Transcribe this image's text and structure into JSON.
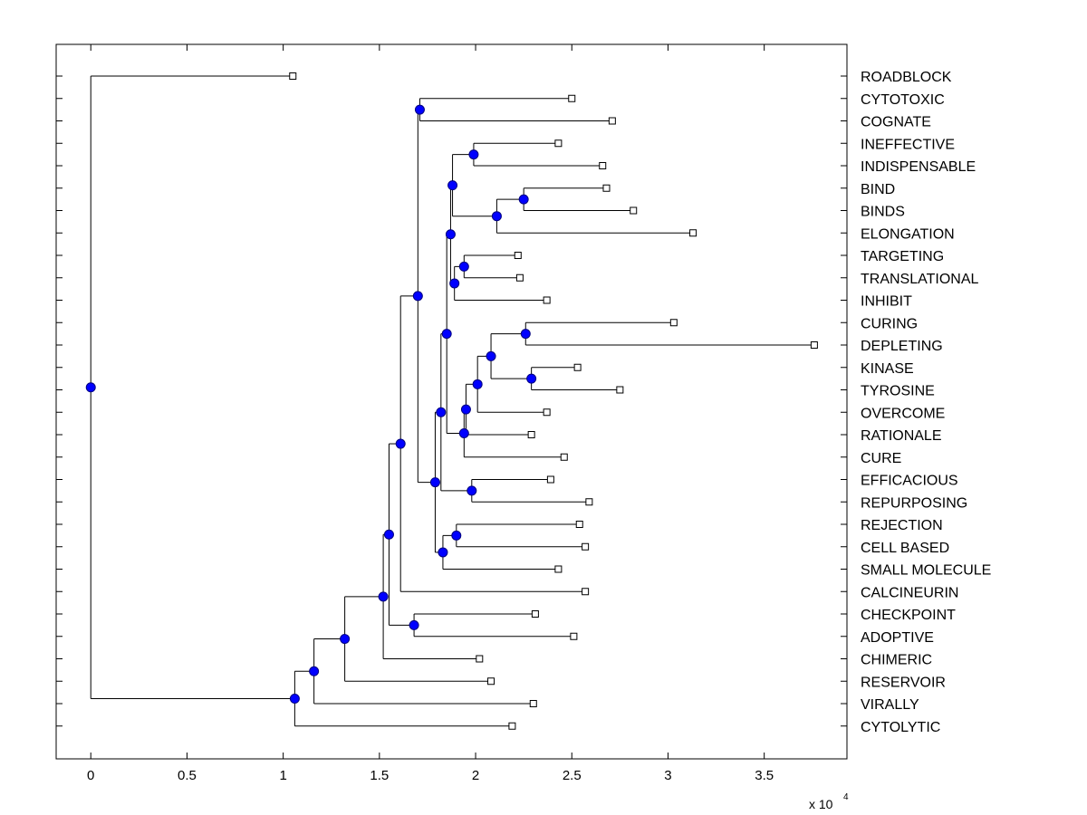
{
  "chart_data": {
    "type": "dendrogram",
    "title": "",
    "xlabel": "",
    "ylabel": "",
    "x_range": [
      -0.18,
      3.93
    ],
    "x_scale_label": "x 10",
    "x_scale_exponent": "4",
    "x_ticks": [
      {
        "value": 0,
        "label": "0"
      },
      {
        "value": 0.5,
        "label": "0.5"
      },
      {
        "value": 1,
        "label": "1"
      },
      {
        "value": 1.5,
        "label": "1.5"
      },
      {
        "value": 2,
        "label": "2"
      },
      {
        "value": 2.5,
        "label": "2.5"
      },
      {
        "value": 3,
        "label": "3"
      },
      {
        "value": 3.5,
        "label": "3.5"
      }
    ],
    "leaves": [
      {
        "id": "L0",
        "label": "ROADBLOCK",
        "x": 1.05
      },
      {
        "id": "L1",
        "label": "CYTOTOXIC",
        "x": 2.5
      },
      {
        "id": "L2",
        "label": "COGNATE",
        "x": 2.71
      },
      {
        "id": "L3",
        "label": "INEFFECTIVE",
        "x": 2.43
      },
      {
        "id": "L4",
        "label": "INDISPENSABLE",
        "x": 2.66
      },
      {
        "id": "L5",
        "label": "BIND",
        "x": 2.68
      },
      {
        "id": "L6",
        "label": "BINDS",
        "x": 2.82
      },
      {
        "id": "L7",
        "label": "ELONGATION",
        "x": 3.13
      },
      {
        "id": "L8",
        "label": "TARGETING",
        "x": 2.22
      },
      {
        "id": "L9",
        "label": "TRANSLATIONAL",
        "x": 2.23
      },
      {
        "id": "L10",
        "label": "INHIBIT",
        "x": 2.37
      },
      {
        "id": "L11",
        "label": "CURING",
        "x": 3.03
      },
      {
        "id": "L12",
        "label": "DEPLETING",
        "x": 3.76
      },
      {
        "id": "L13",
        "label": "KINASE",
        "x": 2.53
      },
      {
        "id": "L14",
        "label": "TYROSINE",
        "x": 2.75
      },
      {
        "id": "L15",
        "label": "OVERCOME",
        "x": 2.37
      },
      {
        "id": "L16",
        "label": "RATIONALE",
        "x": 2.29
      },
      {
        "id": "L17",
        "label": "CURE",
        "x": 2.46
      },
      {
        "id": "L18",
        "label": "EFFICACIOUS",
        "x": 2.39
      },
      {
        "id": "L19",
        "label": "REPURPOSING",
        "x": 2.59
      },
      {
        "id": "L20",
        "label": "REJECTION",
        "x": 2.54
      },
      {
        "id": "L21",
        "label": "CELL BASED",
        "x": 2.57
      },
      {
        "id": "L22",
        "label": "SMALL MOLECULE",
        "x": 2.43
      },
      {
        "id": "L23",
        "label": "CALCINEURIN",
        "x": 2.57
      },
      {
        "id": "L24",
        "label": "CHECKPOINT",
        "x": 2.31
      },
      {
        "id": "L25",
        "label": "ADOPTIVE",
        "x": 2.51
      },
      {
        "id": "L26",
        "label": "CHIMERIC",
        "x": 2.02
      },
      {
        "id": "L27",
        "label": "RESERVOIR",
        "x": 2.08
      },
      {
        "id": "L28",
        "label": "VIRALLY",
        "x": 2.3
      },
      {
        "id": "L29",
        "label": "CYTOLYTIC",
        "x": 2.19
      }
    ],
    "merges": [
      {
        "id": "N1",
        "x": 2.25,
        "children": [
          "L5",
          "L6"
        ]
      },
      {
        "id": "N2",
        "x": 2.11,
        "children": [
          "N1",
          "L7"
        ]
      },
      {
        "id": "N3",
        "x": 1.99,
        "children": [
          "L3",
          "L4"
        ]
      },
      {
        "id": "N4",
        "x": 1.88,
        "children": [
          "N3",
          "N2"
        ]
      },
      {
        "id": "N5",
        "x": 1.94,
        "children": [
          "L8",
          "L9"
        ]
      },
      {
        "id": "N6",
        "x": 1.89,
        "children": [
          "N5",
          "L10"
        ]
      },
      {
        "id": "N7",
        "x": 1.87,
        "children": [
          "N4",
          "N6"
        ]
      },
      {
        "id": "N8",
        "x": 1.71,
        "children": [
          "L1",
          "L2"
        ]
      },
      {
        "id": "N9",
        "x": 2.26,
        "children": [
          "L11",
          "L12"
        ]
      },
      {
        "id": "N10",
        "x": 2.29,
        "children": [
          "L13",
          "L14"
        ]
      },
      {
        "id": "N11",
        "x": 2.08,
        "children": [
          "N9",
          "N10"
        ]
      },
      {
        "id": "N12",
        "x": 2.01,
        "children": [
          "N11",
          "L15"
        ]
      },
      {
        "id": "N13",
        "x": 1.95,
        "children": [
          "N12",
          "L16"
        ]
      },
      {
        "id": "N14",
        "x": 1.94,
        "children": [
          "N13",
          "L17"
        ]
      },
      {
        "id": "N15",
        "x": 1.85,
        "children": [
          "N7",
          "N14"
        ]
      },
      {
        "id": "N16",
        "x": 1.98,
        "children": [
          "L18",
          "L19"
        ]
      },
      {
        "id": "N17",
        "x": 1.82,
        "children": [
          "N15",
          "N16"
        ]
      },
      {
        "id": "N18",
        "x": 1.9,
        "children": [
          "L20",
          "L21"
        ]
      },
      {
        "id": "N19",
        "x": 1.83,
        "children": [
          "N18",
          "L22"
        ]
      },
      {
        "id": "N20",
        "x": 1.79,
        "children": [
          "N17",
          "N19"
        ]
      },
      {
        "id": "N21",
        "x": 1.7,
        "children": [
          "N8",
          "N20"
        ]
      },
      {
        "id": "N22",
        "x": 1.61,
        "children": [
          "N21",
          "L23"
        ]
      },
      {
        "id": "N23",
        "x": 1.68,
        "children": [
          "L24",
          "L25"
        ]
      },
      {
        "id": "N24",
        "x": 1.55,
        "children": [
          "N22",
          "N23"
        ]
      },
      {
        "id": "N25",
        "x": 1.52,
        "children": [
          "N24",
          "L26"
        ]
      },
      {
        "id": "N26",
        "x": 1.32,
        "children": [
          "N25",
          "L27"
        ]
      },
      {
        "id": "N27",
        "x": 1.16,
        "children": [
          "N26",
          "L28"
        ]
      },
      {
        "id": "N28",
        "x": 1.06,
        "children": [
          "N27",
          "L29"
        ]
      },
      {
        "id": "N29",
        "x": 0.0,
        "children": [
          "L0",
          "N28"
        ]
      }
    ],
    "colors": {
      "node_fill": "#0000ff",
      "node_stroke": "#000080",
      "line": "#000000",
      "leaf_marker_fill": "#ffffff",
      "background": "#ffffff"
    }
  }
}
